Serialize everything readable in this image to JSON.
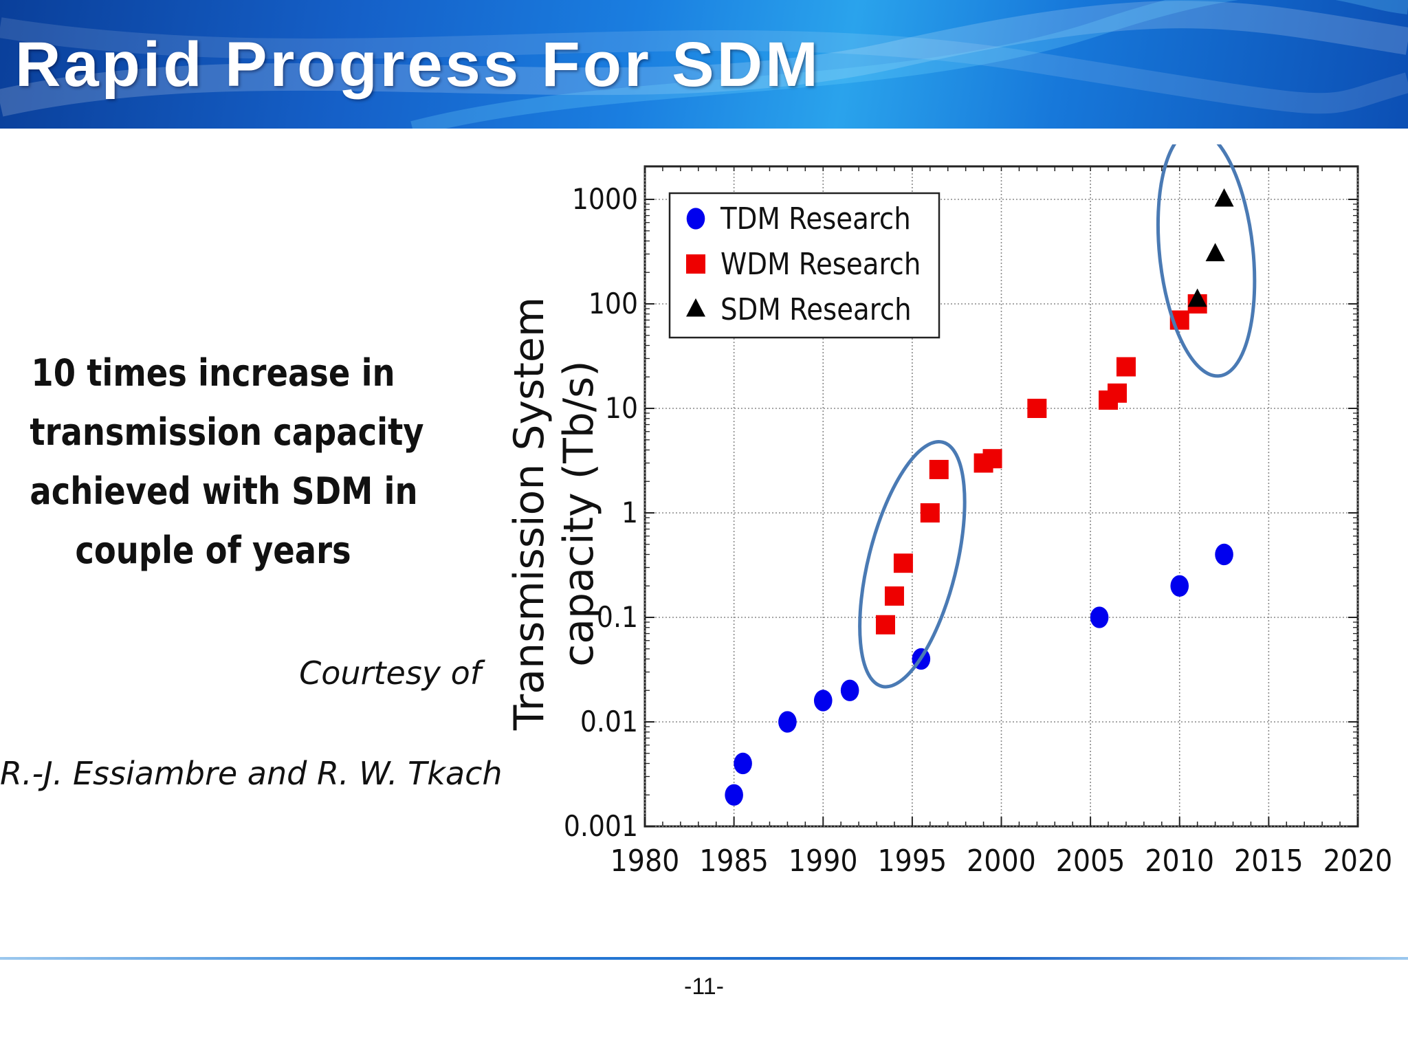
{
  "header": {
    "title": "Rapid Progress For SDM"
  },
  "claim": {
    "lines": [
      "10 times increase in",
      "transmission capacity",
      "achieved with SDM in",
      "couple of years"
    ]
  },
  "courtesy": {
    "label": "Courtesy of",
    "authors": "R.-J. Essiambre and R. W. Tkach"
  },
  "footer": {
    "page_number": "-11-"
  },
  "colors": {
    "tdm": "#0000ee",
    "wdm": "#ee0000",
    "sdm": "#000000",
    "highlight_ellipse": "#4a7ab4"
  },
  "chart_data": {
    "type": "scatter",
    "title": "",
    "xlabel": "",
    "ylabel": "Transmission System capacity (Tb/s)",
    "ylabel_lines": [
      "Transmission System",
      "capacity (Tb/s)"
    ],
    "xlim": [
      1980,
      2020
    ],
    "ylim": [
      0.001,
      1000
    ],
    "yscale": "log",
    "grid": true,
    "legend_position": "top-left",
    "x_ticks": [
      "1980",
      "1985",
      "1990",
      "1995",
      "2000",
      "2005",
      "2010",
      "2015",
      "2020"
    ],
    "y_ticks": [
      "0.001",
      "0.01",
      "0.1",
      "1",
      "10",
      "100",
      "1000"
    ],
    "series": [
      {
        "name": "TDM  Research",
        "marker": "circle",
        "x": [
          1985,
          1985.5,
          1988,
          1990,
          1991.5,
          1995.5,
          2005.5,
          2010,
          2012.5
        ],
        "y": [
          0.002,
          0.004,
          0.01,
          0.016,
          0.02,
          0.04,
          0.1,
          0.2,
          0.4
        ]
      },
      {
        "name": "WDM Research",
        "marker": "square",
        "x": [
          1993.5,
          1994,
          1994.5,
          1996,
          1996.5,
          1999,
          1999.5,
          2002,
          2006,
          2006.5,
          2007,
          2010,
          2011
        ],
        "y": [
          0.085,
          0.16,
          0.33,
          1.0,
          2.6,
          3.0,
          3.3,
          10,
          12,
          14,
          25,
          70,
          100
        ]
      },
      {
        "name": "SDM  Research",
        "marker": "triangle",
        "x": [
          2011,
          2012,
          2012.5
        ],
        "y": [
          110,
          300,
          1000
        ]
      }
    ]
  }
}
